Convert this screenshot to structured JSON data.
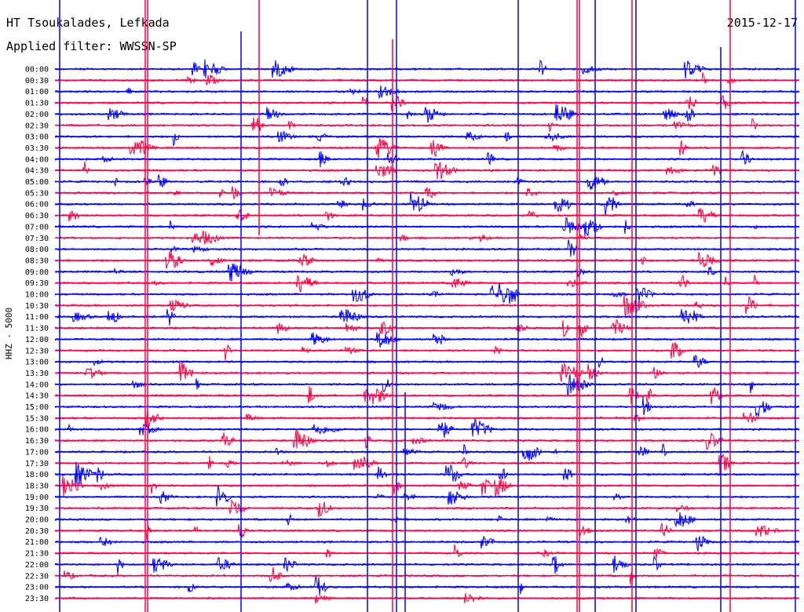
{
  "header": {
    "station": "HT Tsoukalades, Lefkada",
    "filter": "Applied filter: WWSSN-SP",
    "date": "2015-12-17"
  },
  "chart_data": {
    "type": "helicorder",
    "ylabel": "HHZ - 5000",
    "row_labels": [
      "00:00",
      "00:30",
      "01:00",
      "01:30",
      "02:00",
      "02:30",
      "03:00",
      "03:30",
      "04:00",
      "04:30",
      "05:00",
      "05:30",
      "06:00",
      "06:30",
      "07:00",
      "07:30",
      "08:00",
      "08:30",
      "09:00",
      "09:30",
      "10:00",
      "10:30",
      "11:00",
      "11:30",
      "12:00",
      "12:30",
      "13:00",
      "13:30",
      "14:00",
      "14:30",
      "15:00",
      "15:30",
      "16:00",
      "16:30",
      "17:00",
      "17:30",
      "18:00",
      "18:30",
      "19:00",
      "19:30",
      "20:00",
      "20:30",
      "21:00",
      "21:30",
      "22:00",
      "22:30",
      "23:00",
      "23:30"
    ],
    "colors": [
      "#0000ff",
      "#ff0044"
    ],
    "row_minutes": 30
  }
}
